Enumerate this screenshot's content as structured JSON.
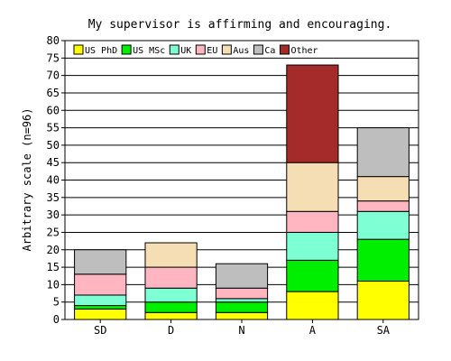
{
  "chart_data": {
    "type": "bar",
    "stacked": true,
    "title": "My supervisor is affirming and encouraging.",
    "ylabel": "Arbitrary scale (n=96)",
    "xlabel": "",
    "ylim": [
      0,
      80
    ],
    "yticks": [
      0,
      5,
      10,
      15,
      20,
      25,
      30,
      35,
      40,
      45,
      50,
      55,
      60,
      65,
      70,
      75,
      80
    ],
    "grid": true,
    "legend_position": "top",
    "categories": [
      "SD",
      "D",
      "N",
      "A",
      "SA"
    ],
    "series": [
      {
        "name": "US PhD",
        "color": "#ffff00",
        "values": [
          3,
          2,
          2,
          8,
          11
        ]
      },
      {
        "name": "US MSc",
        "color": "#00ee00",
        "values": [
          1,
          3,
          3,
          9,
          12
        ]
      },
      {
        "name": "UK",
        "color": "#7fffd4",
        "values": [
          3,
          4,
          1,
          8,
          8
        ]
      },
      {
        "name": "EU",
        "color": "#ffb6c1",
        "values": [
          6,
          6,
          3,
          6,
          3
        ]
      },
      {
        "name": "Aus",
        "color": "#f5deb3",
        "values": [
          0,
          7,
          0,
          14,
          7
        ]
      },
      {
        "name": "Ca",
        "color": "#bebebe",
        "values": [
          7,
          0,
          7,
          0,
          14
        ]
      },
      {
        "name": "Other",
        "color": "#a52a2a",
        "values": [
          0,
          0,
          0,
          28,
          0
        ]
      }
    ]
  }
}
